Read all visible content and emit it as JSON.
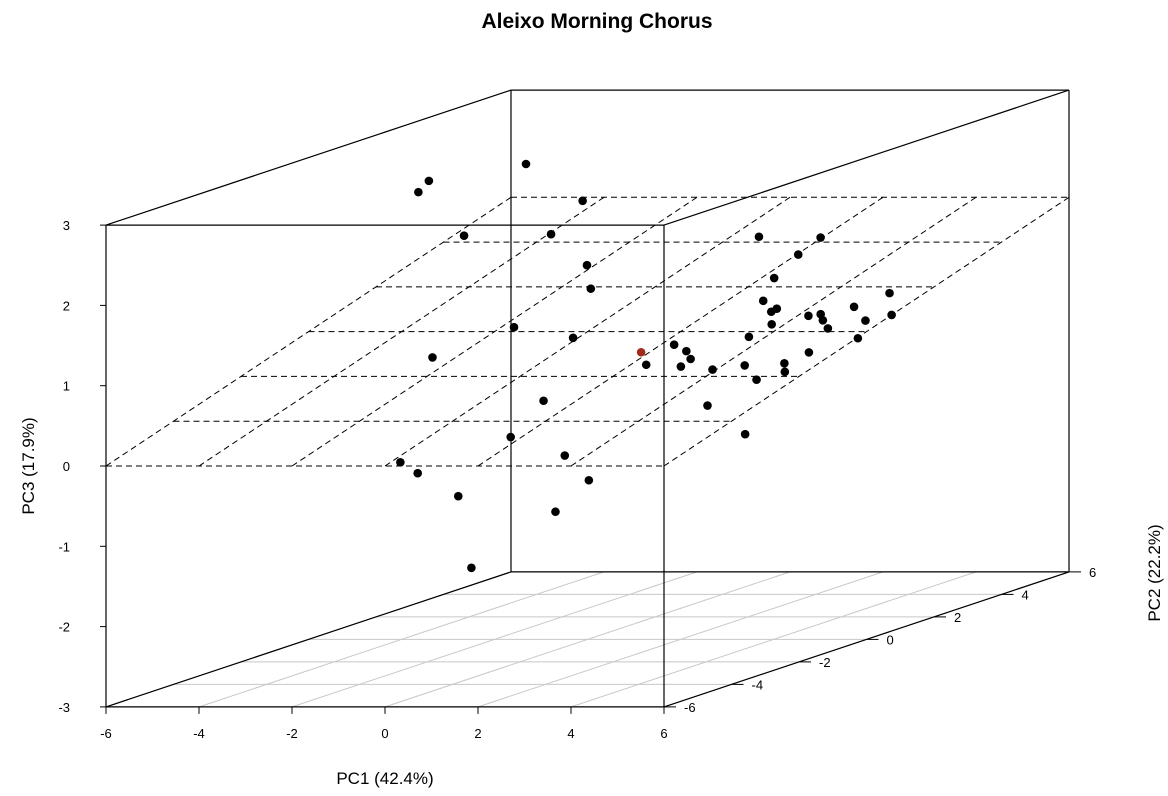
{
  "chart_data": {
    "type": "scatter",
    "subtype": "scatterplot3d",
    "title": "Aleixo Morning Chorus",
    "xlabel": "PC1 (42.4%)",
    "ylabel": "PC2 (22.2%)",
    "zlabel": "PC3 (17.9%)",
    "xlim": [
      -6,
      6
    ],
    "ylim": [
      -6,
      6
    ],
    "zlim": [
      -3,
      3
    ],
    "x_ticks": [
      "-6",
      "-4",
      "-2",
      "0",
      "2",
      "4",
      "6"
    ],
    "y_ticks": [
      "-6",
      "-4",
      "-2",
      "0",
      "2",
      "4",
      "6"
    ],
    "z_ticks": [
      "-3",
      "-2",
      "-1",
      "0",
      "1",
      "2",
      "3"
    ],
    "grid": true,
    "regression_plane": true,
    "colors": {
      "points": "#000000",
      "highlight": "#a32a1a",
      "floor_grid": "#c8c8c8"
    },
    "points": [
      {
        "x": -4.5,
        "y": 1.5,
        "z": 2.5
      },
      {
        "x": -4.0,
        "y": 0.5,
        "z": 2.5
      },
      {
        "x": -3.5,
        "y": 3.0,
        "z": 2.5
      },
      {
        "x": -2.8,
        "y": 0.2,
        "z": 2.0
      },
      {
        "x": -2.5,
        "y": 3.3,
        "z": 2.0
      },
      {
        "x": -1.8,
        "y": 1.4,
        "z": 1.85
      },
      {
        "x": -1.1,
        "y": 1.5,
        "z": 1.45
      },
      {
        "x": -0.8,
        "y": 1.2,
        "z": 1.2
      },
      {
        "x": -1.0,
        "y": -0.8,
        "z": 1.0
      },
      {
        "x": -2.1,
        "y": -1.7,
        "z": 0.75
      },
      {
        "x": -0.6,
        "y": 0.4,
        "z": 0.7
      },
      {
        "x": -0.8,
        "y": -0.2,
        "z": 0.0
      },
      {
        "x": -0.2,
        "y": -2.0,
        "z": -0.2
      },
      {
        "x": -2.5,
        "y": -2.1,
        "z": -0.5
      },
      {
        "x": -2.2,
        "y": -2.0,
        "z": -0.65
      },
      {
        "x": -1.4,
        "y": -1.9,
        "z": -0.95
      },
      {
        "x": 0.6,
        "y": -1.5,
        "z": -0.5
      },
      {
        "x": 0.9,
        "y": -1.2,
        "z": -0.85
      },
      {
        "x": 0.4,
        "y": -1.5,
        "z": -1.2
      },
      {
        "x": -0.9,
        "y": -2.2,
        "z": -1.8
      },
      {
        "x": 0.9,
        "y": 0.5,
        "z": 0.35
      },
      {
        "x": 1.5,
        "y": 0.5,
        "z": 0.6
      },
      {
        "x": 2.0,
        "y": 0.3,
        "z": 0.45
      },
      {
        "x": 1.5,
        "y": 0.7,
        "z": 0.3
      },
      {
        "x": 1.4,
        "y": 1.0,
        "z": 0.45
      },
      {
        "x": 1.6,
        "y": 1.5,
        "z": 0.15
      },
      {
        "x": 2.0,
        "y": 0.8,
        "z": -0.2
      },
      {
        "x": 3.1,
        "y": 0.4,
        "z": -0.5
      },
      {
        "x": 2.8,
        "y": 0.8,
        "z": 0.3
      },
      {
        "x": 3.2,
        "y": 0.6,
        "z": 0.15
      },
      {
        "x": 2.5,
        "y": 2.8,
        "z": 1.4
      },
      {
        "x": 2.4,
        "y": 3.6,
        "z": 1.5
      },
      {
        "x": 2.2,
        "y": 2.5,
        "z": 1.15
      },
      {
        "x": 2.4,
        "y": 1.9,
        "z": 0.95
      },
      {
        "x": 2.5,
        "y": 2.0,
        "z": 0.8
      },
      {
        "x": 2.8,
        "y": 1.6,
        "z": 0.7
      },
      {
        "x": 2.6,
        "y": 1.2,
        "z": 0.6
      },
      {
        "x": 3.2,
        "y": 2.5,
        "z": 0.7
      },
      {
        "x": 3.3,
        "y": 2.0,
        "z": 0.75
      },
      {
        "x": 3.5,
        "y": 2.3,
        "z": 0.55
      },
      {
        "x": 3.7,
        "y": 2.8,
        "z": 0.75
      },
      {
        "x": 4.0,
        "y": 3.5,
        "z": 0.55
      },
      {
        "x": 3.8,
        "y": 3.0,
        "z": 0.55
      },
      {
        "x": 4.0,
        "y": 2.5,
        "z": 0.4
      },
      {
        "x": 3.6,
        "y": 1.6,
        "z": 0.35
      },
      {
        "x": 3.0,
        "y": 1.7,
        "z": 0.2
      },
      {
        "x": 3.3,
        "y": 1.3,
        "z": 0.15
      },
      {
        "x": 4.1,
        "y": 3.3,
        "z": 0.85
      },
      {
        "x": 3.9,
        "y": 1.6,
        "z": 0.75
      },
      {
        "x": 3.2,
        "y": 1.2,
        "z": 0.95
      },
      {
        "x": 1.8,
        "y": 2.6,
        "z": 1.65
      },
      {
        "x": 0.5,
        "y": 0.9,
        "z": 0.45,
        "highlight": true
      }
    ]
  }
}
